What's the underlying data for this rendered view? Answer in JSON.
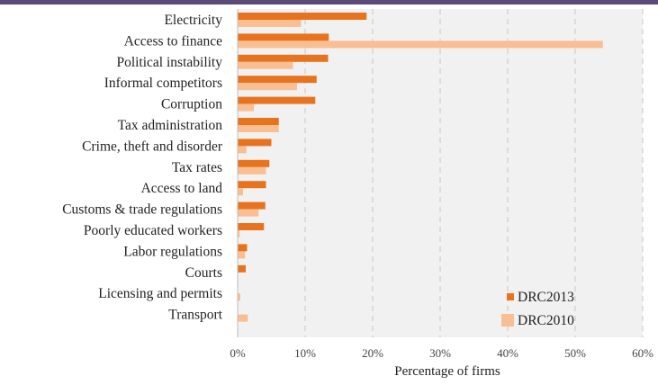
{
  "colors": {
    "top_bar": "#5c4a78",
    "series_2013": "#e8731f",
    "series_2010": "#f9be92",
    "plot_bg": "#f1f1f1",
    "grid": "#c8c8c8"
  },
  "chart_data": {
    "type": "bar",
    "orientation": "horizontal",
    "title": "",
    "xlabel": "Percentage  of firms",
    "ylabel": "",
    "xlim": [
      0,
      60
    ],
    "x_ticks": [
      0,
      10,
      20,
      30,
      40,
      50,
      60
    ],
    "x_tick_labels": [
      "0%",
      "10%",
      "20%",
      "30%",
      "40%",
      "50%",
      "60%"
    ],
    "grid": "vertical-dashed",
    "legend_position": "bottom-right",
    "categories": [
      "Electricity",
      "Access to finance",
      "Political instability",
      "Informal competitors",
      "Corruption",
      "Tax administration",
      "Crime, theft and disorder",
      "Tax rates",
      "Access to land",
      "Customs & trade regulations",
      "Poorly educated workers",
      "Labor regulations",
      "Courts",
      "Licensing and permits",
      "Transport"
    ],
    "series": [
      {
        "name": "DRC2013",
        "color": "#e8731f",
        "values": [
          19.1,
          13.5,
          13.4,
          11.7,
          11.5,
          6.1,
          5.0,
          4.7,
          4.2,
          4.1,
          3.9,
          1.4,
          1.2,
          0.0,
          0.0
        ]
      },
      {
        "name": "DRC2010",
        "color": "#f9be92",
        "values": [
          9.4,
          54.1,
          8.2,
          8.8,
          2.4,
          6.1,
          1.3,
          4.2,
          0.8,
          3.1,
          0.3,
          1.1,
          0.0,
          0.4,
          1.5
        ]
      }
    ]
  }
}
